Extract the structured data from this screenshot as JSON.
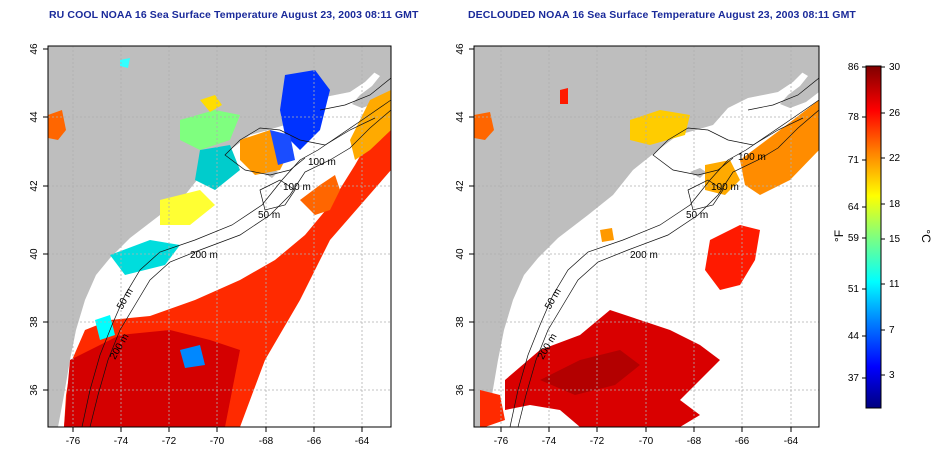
{
  "maps": [
    {
      "title": "RU COOL NOAA 16 Sea Surface Temperature August 23, 2003 08:11 GMT",
      "x_ticks": [
        "-76",
        "-74",
        "-72",
        "-70",
        "-68",
        "-66",
        "-64"
      ],
      "y_ticks": [
        "36",
        "38",
        "40",
        "42",
        "44",
        "46"
      ],
      "contour_labels": [
        "100 m",
        "100 m",
        "50 m",
        "200 m",
        "50 m",
        "200 m"
      ]
    },
    {
      "title": "DECLOUDED NOAA 16 Sea Surface Temperature August 23, 2003 08:11 GMT",
      "x_ticks": [
        "-76",
        "-74",
        "-72",
        "-70",
        "-68",
        "-66",
        "-64"
      ],
      "y_ticks": [
        "36",
        "38",
        "40",
        "42",
        "44",
        "46"
      ],
      "contour_labels": [
        "100 m",
        "100 m",
        "50 m",
        "200 m",
        "50 m",
        "200 m"
      ]
    }
  ],
  "colorbar": {
    "fahrenheit_unit": "°F",
    "celsius_unit": "°C",
    "fahrenheit_ticks": [
      "86",
      "78",
      "71",
      "64",
      "59",
      "51",
      "44",
      "37"
    ],
    "celsius_ticks": [
      "30",
      "26",
      "22",
      "18",
      "15",
      "11",
      "7",
      "3"
    ],
    "colors": [
      "#00007f",
      "#0000ff",
      "#007fff",
      "#00ffff",
      "#7fff7f",
      "#ffff00",
      "#ff7f00",
      "#ff0000",
      "#7f0000"
    ]
  },
  "map_colors": {
    "land": "#bebebe",
    "cloud": "#ffffff",
    "grid": "#b0b0b0"
  }
}
